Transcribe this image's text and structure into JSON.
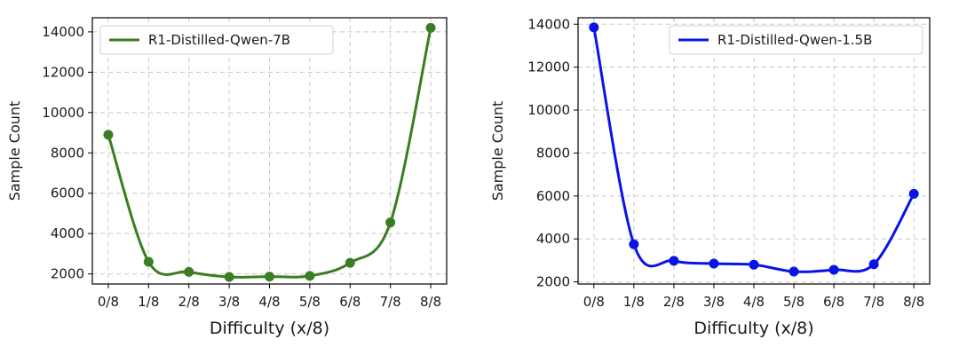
{
  "chart_data": [
    {
      "type": "line",
      "categories": [
        "0/8",
        "1/8",
        "2/8",
        "3/8",
        "4/8",
        "5/8",
        "6/8",
        "7/8",
        "8/8"
      ],
      "series": [
        {
          "name": "R1-Distilled-Qwen-7B",
          "color": "#3a7d22",
          "values": [
            8900,
            2600,
            2100,
            1850,
            1870,
            1900,
            2550,
            4550,
            14200
          ]
        }
      ],
      "xlabel": "Difficulty (x/8)",
      "ylabel": "Sample Count",
      "ylim": [
        1500,
        14700
      ],
      "yticks": [
        2000,
        4000,
        6000,
        8000,
        10000,
        12000,
        14000
      ],
      "grid": true,
      "legend_position": "top-left",
      "smooth": true
    },
    {
      "type": "line",
      "categories": [
        "0/8",
        "1/8",
        "2/8",
        "3/8",
        "4/8",
        "5/8",
        "6/8",
        "7/8",
        "8/8"
      ],
      "series": [
        {
          "name": "R1-Distilled-Qwen-1.5B",
          "color": "#0a14e6",
          "values": [
            13850,
            3750,
            2980,
            2850,
            2800,
            2480,
            2560,
            2820,
            6100
          ]
        }
      ],
      "xlabel": "Difficulty (x/8)",
      "ylabel": "Sample Count",
      "ylim": [
        1900,
        14300
      ],
      "yticks": [
        2000,
        4000,
        6000,
        8000,
        10000,
        12000,
        14000
      ],
      "grid": true,
      "legend_position": "top-right",
      "smooth": true
    }
  ]
}
